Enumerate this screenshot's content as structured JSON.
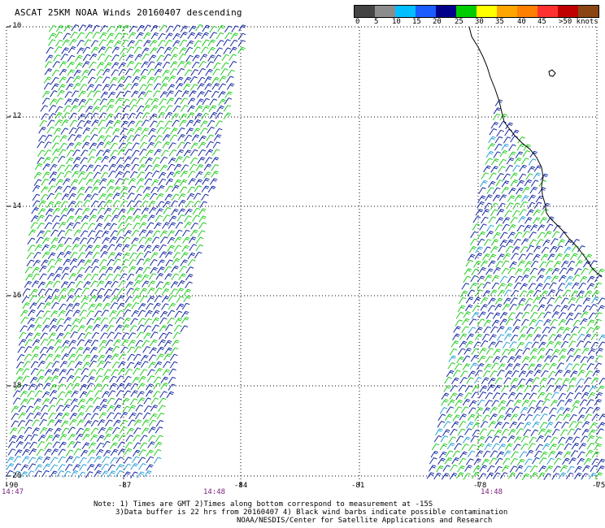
{
  "title": "ASCAT 25KM NOAA Winds 20160407 descending",
  "legend": {
    "colors": [
      "#444444",
      "#8c8c8c",
      "#00bfff",
      "#1a5cff",
      "#00008b",
      "#00cc00",
      "#ffff00",
      "#ffa500",
      "#ff7f00",
      "#ff3030",
      "#c00000",
      "#8b4513",
      "#ff00ff",
      "#9400d3",
      "#4b0082",
      "#000066"
    ],
    "labels": [
      "0",
      "5",
      "10",
      "15",
      "20",
      "25",
      "30",
      "35",
      "40",
      "45",
      ">50 knots"
    ]
  },
  "axes": {
    "lon_labels": [
      "-90",
      "-87",
      "-84",
      "-81",
      "-78",
      "-75"
    ],
    "lat_labels": [
      "-10",
      "-12",
      "-14",
      "-16",
      "-18",
      "-20"
    ]
  },
  "times": [
    "14:47",
    "14:48",
    "14:48"
  ],
  "notes": [
    "Note: 1) Times are GMT 2)Times along bottom correspond to measurement at -15S",
    "3)Data buffer is 22 hrs from 20160407 4) Black wind barbs indicate possible contamination",
    "NOAA/NESDIS/Center for Satellite Applications and Research"
  ],
  "colors": {
    "grid": "#000000",
    "coast": "#000000",
    "green_barb": "#22cc22",
    "blue_barb": "#1428a0",
    "cyan_barb": "#2a9fd6"
  }
}
